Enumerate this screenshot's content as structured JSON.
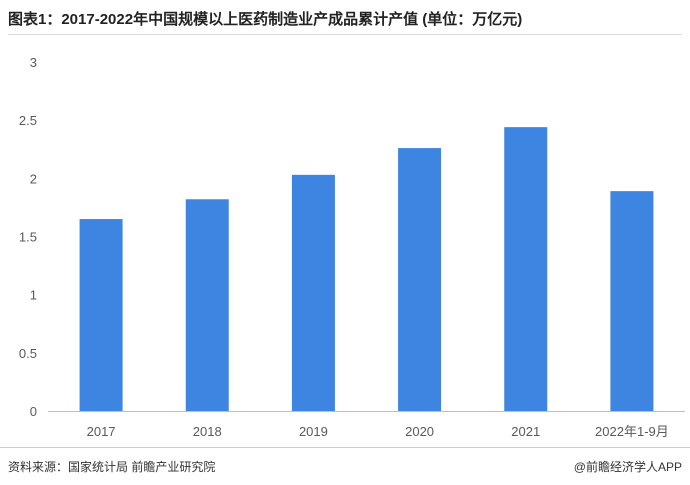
{
  "title": "图表1：2017-2022年中国规模以上医药制造业产成品累计产值 (单位：万亿元)",
  "source": "资料来源：国家统计局 前瞻产业研究院",
  "brand": "@前瞻经济学人APP",
  "colors": {
    "bar": "#3d85e0",
    "axis": "#bfbfbf",
    "text": "#595959"
  },
  "chart_data": {
    "type": "bar",
    "categories": [
      "2017",
      "2018",
      "2019",
      "2020",
      "2021",
      "2022年1-9月"
    ],
    "values": [
      1.65,
      1.82,
      2.03,
      2.26,
      2.44,
      1.89
    ],
    "ylim": [
      0,
      3
    ],
    "yticks": [
      0,
      0.5,
      1,
      1.5,
      2,
      2.5,
      3
    ],
    "ytick_labels": [
      "0",
      "0.5",
      "1",
      "1.5",
      "2",
      "2.5",
      "3"
    ],
    "grid": false,
    "xlabel": "",
    "ylabel": ""
  }
}
